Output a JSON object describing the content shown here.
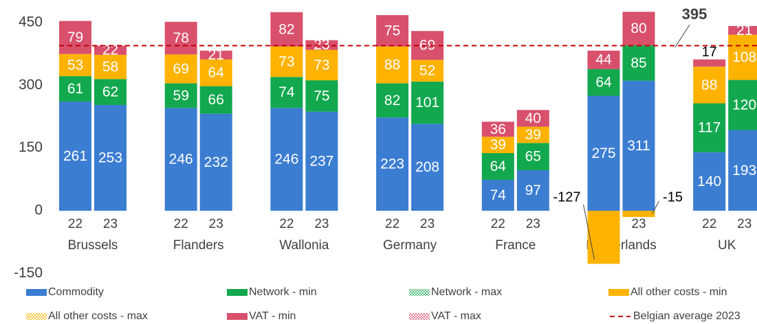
{
  "chart_data": {
    "type": "stacked-bar",
    "groups": [
      "Brussels",
      "Flanders",
      "Wallonia",
      "Germany",
      "France",
      "Netherlands",
      "UK"
    ],
    "categories": [
      "22",
      "23",
      "22",
      "23",
      "22",
      "23",
      "22",
      "23",
      "22",
      "23",
      "22",
      "23",
      "22",
      "23"
    ],
    "series": [
      {
        "name": "Commodity",
        "color": "#3b7dd1",
        "values": [
          261,
          253,
          246,
          232,
          246,
          237,
          223,
          208,
          74,
          97,
          275,
          311,
          140,
          193
        ]
      },
      {
        "name": "Network - min",
        "color": "#12a84e",
        "values": [
          61,
          62,
          59,
          66,
          74,
          75,
          82,
          101,
          64,
          65,
          64,
          85,
          117,
          120
        ]
      },
      {
        "name": "Network - max",
        "color": "#12a84e",
        "style": "hatched",
        "values": [
          null,
          null,
          null,
          null,
          null,
          null,
          null,
          null,
          null,
          null,
          null,
          null,
          null,
          null
        ]
      },
      {
        "name": "All other costs - min",
        "color": "#ffb300",
        "values": [
          53,
          58,
          69,
          64,
          73,
          73,
          88,
          52,
          39,
          39,
          -127,
          -15,
          88,
          108
        ]
      },
      {
        "name": "All other costs - max",
        "color": "#ffb300",
        "style": "hatched",
        "values": [
          null,
          null,
          null,
          null,
          null,
          null,
          null,
          null,
          null,
          null,
          null,
          null,
          null,
          null
        ]
      },
      {
        "name": "VAT - min",
        "color": "#d9506c",
        "values": [
          79,
          22,
          78,
          21,
          82,
          23,
          75,
          69,
          36,
          40,
          44,
          80,
          17,
          21
        ]
      },
      {
        "name": "VAT - max",
        "color": "#d9506c",
        "style": "hatched",
        "values": [
          null,
          null,
          null,
          null,
          null,
          null,
          null,
          null,
          null,
          null,
          null,
          null,
          null,
          null
        ]
      }
    ],
    "average": {
      "name": "Belgian average 2023",
      "value": 395,
      "color": "#c00000"
    },
    "ylim": [
      -150,
      500
    ],
    "yticks": [
      -150,
      0,
      150,
      300,
      450
    ],
    "grid": false
  }
}
